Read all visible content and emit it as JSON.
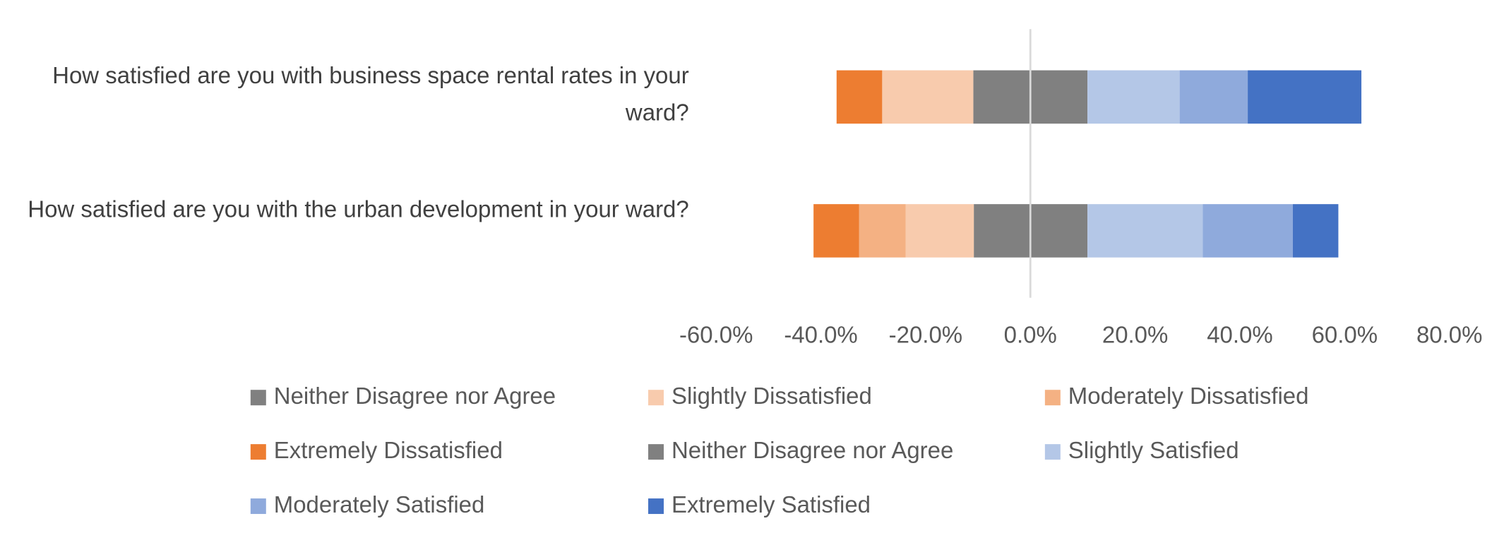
{
  "chart_data": {
    "type": "diverging-bar",
    "categories": [
      "How satisfied are you with business space rental rates in your ward?",
      "How satisfied are you with the urban development in your ward?"
    ],
    "series": [
      {
        "name": "Neither Disagree nor Agree",
        "color": "#808080",
        "values": [
          -10.9,
          -10.8
        ]
      },
      {
        "name": "Slightly Dissatisfied",
        "color": "#f8cbad",
        "values": [
          -17.4,
          -13.0
        ]
      },
      {
        "name": "Moderately Dissatisfied",
        "color": "#f4b183",
        "values": [
          0,
          -8.9
        ]
      },
      {
        "name": "Extremely Dissatisfied",
        "color": "#ed7d31",
        "values": [
          -8.7,
          -8.7
        ]
      },
      {
        "name": "Neither Disagree nor Agree",
        "color": "#808080",
        "values": [
          10.9,
          10.9
        ]
      },
      {
        "name": "Slightly Satisfied",
        "color": "#b4c7e7",
        "values": [
          17.6,
          22.0
        ]
      },
      {
        "name": "Moderately Satisfied",
        "color": "#8faadc",
        "values": [
          13.0,
          17.2
        ]
      },
      {
        "name": "Extremely Satisfied",
        "color": "#4472c4",
        "values": [
          21.7,
          8.7
        ]
      }
    ],
    "xlim": [
      -60,
      80
    ],
    "xticks": [
      {
        "value": -60,
        "label": "-60.0%"
      },
      {
        "value": -40,
        "label": "-40.0%"
      },
      {
        "value": -20,
        "label": "-20.0%"
      },
      {
        "value": 0,
        "label": "0.0%"
      },
      {
        "value": 20,
        "label": "20.0%"
      },
      {
        "value": 40,
        "label": "40.0%"
      },
      {
        "value": 60,
        "label": "60.0%"
      },
      {
        "value": 80,
        "label": "80.0%"
      }
    ],
    "legend": "bottom"
  }
}
